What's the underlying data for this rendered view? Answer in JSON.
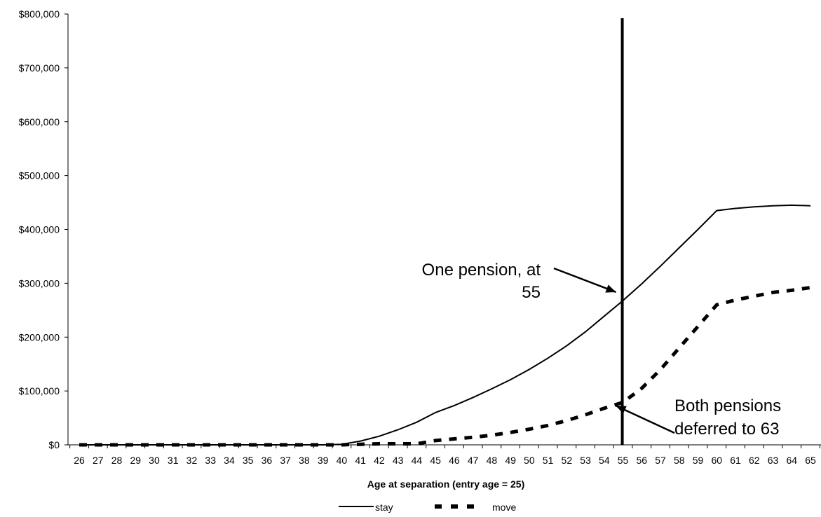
{
  "chart_data": {
    "type": "line",
    "title": "",
    "xlabel": "Age at separation (entry age = 25)",
    "ylabel": "",
    "x": [
      26,
      27,
      28,
      29,
      30,
      31,
      32,
      33,
      34,
      35,
      36,
      37,
      38,
      39,
      40,
      41,
      42,
      43,
      44,
      45,
      46,
      47,
      48,
      49,
      50,
      51,
      52,
      53,
      54,
      55,
      56,
      57,
      58,
      59,
      60,
      61,
      62,
      63,
      64,
      65
    ],
    "ylim": [
      0,
      800000
    ],
    "yticks": [
      0,
      100000,
      200000,
      300000,
      400000,
      500000,
      600000,
      700000,
      800000
    ],
    "ytick_labels": [
      "$0",
      "$100,000",
      "$200,000",
      "$300,000",
      "$400,000",
      "$500,000",
      "$600,000",
      "$700,000",
      "$800,000"
    ],
    "series": [
      {
        "name": "stay",
        "style": "solid",
        "color": "#000000",
        "values": [
          0,
          0,
          0,
          0,
          0,
          0,
          0,
          0,
          0,
          0,
          0,
          0,
          0,
          0,
          1000,
          7000,
          16000,
          28000,
          42000,
          60000,
          73000,
          88000,
          104000,
          121000,
          140000,
          161000,
          184000,
          210000,
          239000,
          268000,
          299000,
          332000,
          366000,
          400000,
          435000,
          439000,
          442000,
          444000,
          445000,
          444000
        ]
      },
      {
        "name": "move",
        "style": "dashed",
        "color": "#000000",
        "values": [
          0,
          0,
          0,
          0,
          0,
          0,
          0,
          0,
          0,
          0,
          0,
          0,
          0,
          0,
          0,
          1000,
          2000,
          2000,
          2000,
          8000,
          11000,
          14000,
          18000,
          23000,
          29000,
          36000,
          45000,
          56000,
          68000,
          79000,
          105000,
          140000,
          180000,
          220000,
          260000,
          269000,
          276000,
          283000,
          287000,
          292000
        ]
      }
    ],
    "vertical_line": {
      "x": 55,
      "style": "solid",
      "color": "#000000"
    },
    "annotations": [
      {
        "lines": [
          "One pension, at",
          "55"
        ],
        "arrow_to": {
          "x": 55,
          "y": 268000
        }
      },
      {
        "lines": [
          "Both pensions",
          "deferred to 63"
        ],
        "arrow_to": {
          "x": 55,
          "y": 79000
        }
      }
    ],
    "legend": {
      "placement": "bottom-center",
      "entries": [
        "stay",
        "move"
      ]
    },
    "grid": false
  }
}
